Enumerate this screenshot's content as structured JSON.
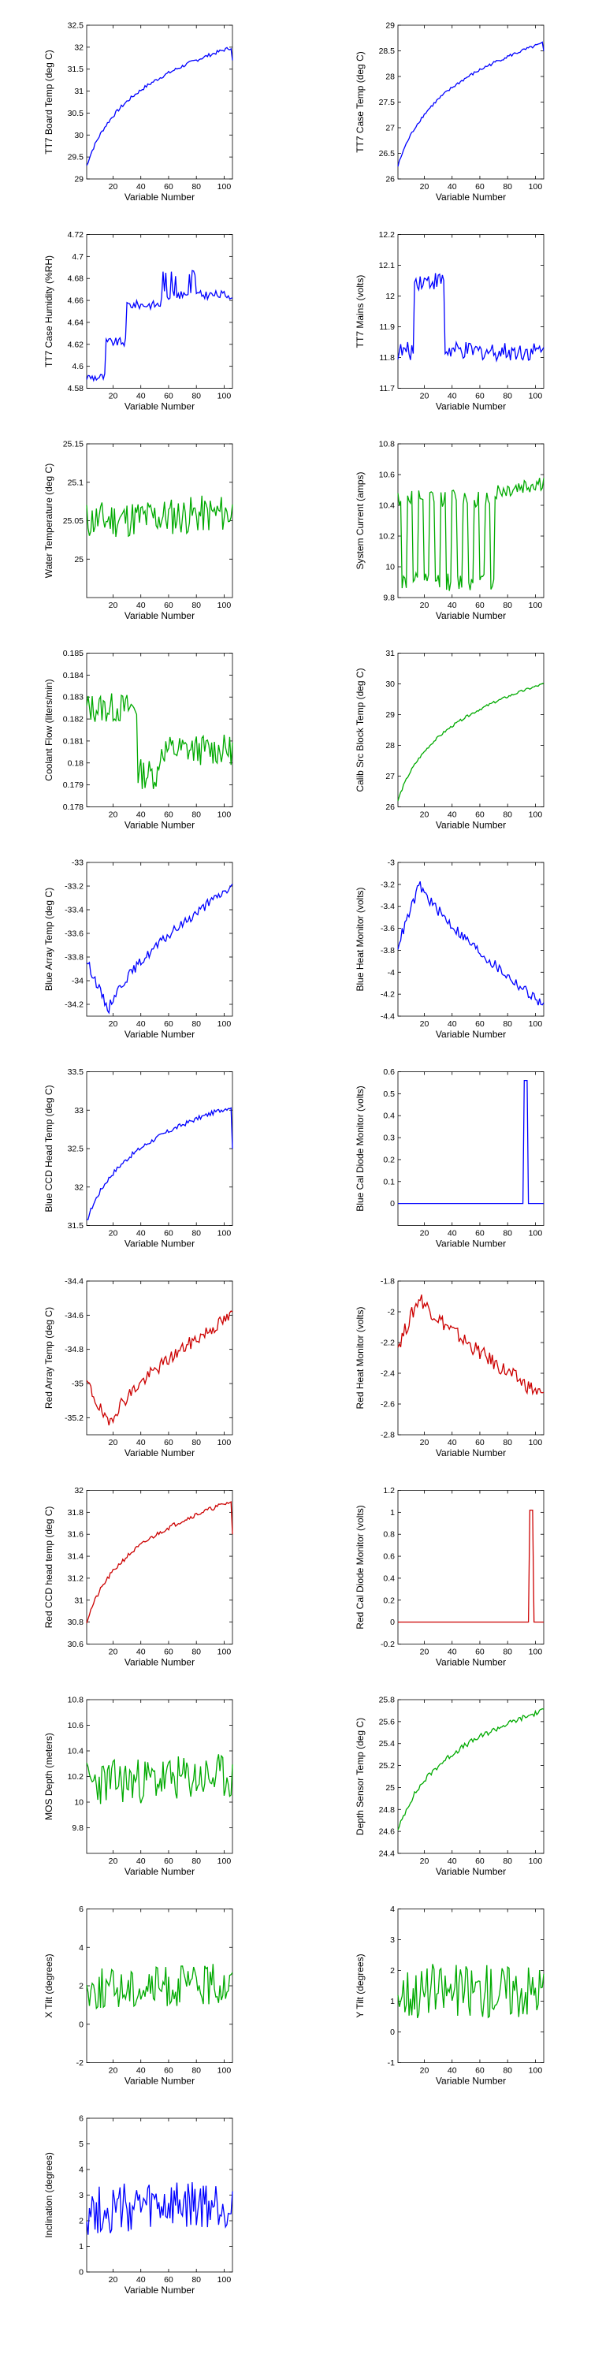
{
  "xlabel_common": "Variable Number",
  "colors": {
    "blue": "#0000FF",
    "green": "#00AA00",
    "red": "#CC0000"
  },
  "chart_data": [
    {
      "type": "line",
      "ylabel": "TT7 Board Temp (deg C)",
      "xlabel": "Variable Number",
      "xlim": [
        1,
        106
      ],
      "ylim": [
        29,
        32.5
      ],
      "xticks": [
        20,
        40,
        60,
        80,
        100
      ],
      "yticks": [
        "29",
        "29.5",
        "30",
        "30.5",
        "31",
        "31.5",
        "32",
        "32.5"
      ],
      "color": "blue",
      "shape": "log",
      "range": [
        29.3,
        32.0
      ],
      "noise": 0.04,
      "end_drop": 31.7
    },
    {
      "type": "line",
      "ylabel": "TT7 Case Temp (deg C)",
      "xlabel": "Variable Number",
      "xlim": [
        1,
        106
      ],
      "ylim": [
        26,
        29
      ],
      "xticks": [
        20,
        40,
        60,
        80,
        100
      ],
      "yticks": [
        "26",
        "26.5",
        "27",
        "27.5",
        "28",
        "28.5",
        "29"
      ],
      "color": "blue",
      "shape": "log",
      "range": [
        26.25,
        28.65
      ],
      "noise": 0.03,
      "end_drop": 28.5
    },
    {
      "type": "line",
      "ylabel": "TT7 Case Humidity (%RH)",
      "xlabel": "Variable Number",
      "xlim": [
        1,
        106
      ],
      "ylim": [
        4.58,
        4.72
      ],
      "xticks": [
        20,
        40,
        60,
        80,
        100
      ],
      "yticks": [
        "4.58",
        "4.6",
        "4.62",
        "4.64",
        "4.66",
        "4.68",
        "4.7",
        "4.72"
      ],
      "color": "blue",
      "shape": "humidity",
      "range": [
        4.59,
        4.665
      ],
      "noise": 0.004
    },
    {
      "type": "line",
      "ylabel": "TT7 Mains  (volts)",
      "xlabel": "Variable Number",
      "xlim": [
        1,
        106
      ],
      "ylim": [
        11.7,
        12.2
      ],
      "xticks": [
        20,
        40,
        60,
        80,
        100
      ],
      "yticks": [
        "11.7",
        "11.8",
        "11.9",
        "12",
        "12.1",
        "12.2"
      ],
      "color": "blue",
      "shape": "mains",
      "range": [
        11.78,
        12.12
      ],
      "noise": 0.03
    },
    {
      "type": "line",
      "ylabel": "Water Temperature (deg C)",
      "xlabel": "Variable Number",
      "xlim": [
        1,
        106
      ],
      "ylim": [
        24.95,
        25.15
      ],
      "xticks": [
        20,
        40,
        60,
        80,
        100
      ],
      "yticks": [
        "25",
        "25.05",
        "25.1",
        "25.15"
      ],
      "color": "green",
      "shape": "noisy",
      "range": [
        25.05,
        25.06
      ],
      "noise": 0.025
    },
    {
      "type": "line",
      "ylabel": "System Current (amps)",
      "xlabel": "Variable Number",
      "xlim": [
        1,
        106
      ],
      "ylim": [
        9.8,
        10.8
      ],
      "xticks": [
        20,
        40,
        60,
        80,
        100
      ],
      "yticks": [
        "9.8",
        "10",
        "10.2",
        "10.4",
        "10.6",
        "10.8"
      ],
      "color": "green",
      "shape": "current",
      "range": [
        9.85,
        10.6
      ],
      "noise": 0.06
    },
    {
      "type": "line",
      "ylabel": "Coolant Flow (liters/min)",
      "xlabel": "Variable Number",
      "xlim": [
        1,
        106
      ],
      "ylim": [
        0.178,
        0.185
      ],
      "xticks": [
        20,
        40,
        60,
        80,
        100
      ],
      "yticks": [
        "0.178",
        "0.179",
        "0.18",
        "0.181",
        "0.182",
        "0.183",
        "0.184",
        "0.185"
      ],
      "color": "green",
      "shape": "coolant",
      "range": [
        0.1815,
        0.1802
      ],
      "noise": 0.0007
    },
    {
      "type": "line",
      "ylabel": "Calib Src Block Temp (deg C)",
      "xlabel": "Variable Number",
      "xlim": [
        1,
        106
      ],
      "ylim": [
        26,
        31
      ],
      "xticks": [
        20,
        40,
        60,
        80,
        100
      ],
      "yticks": [
        "26",
        "27",
        "28",
        "29",
        "30",
        "31"
      ],
      "color": "green",
      "shape": "log",
      "range": [
        26.2,
        30.0
      ],
      "noise": 0.04
    },
    {
      "type": "line",
      "ylabel": "Blue Array Temp (deg C)",
      "xlabel": "Variable Number",
      "xlim": [
        1,
        106
      ],
      "ylim": [
        -34.3,
        -33
      ],
      "xticks": [
        20,
        40,
        60,
        80,
        100
      ],
      "yticks": [
        "-34.2",
        "-34",
        "-33.8",
        "-33.6",
        "-33.4",
        "-33.2",
        "-33"
      ],
      "color": "blue",
      "shape": "dip_rise",
      "range": [
        -34.25,
        -33.2
      ],
      "noise": 0.04
    },
    {
      "type": "line",
      "ylabel": "Blue Heat Monitor (volts)",
      "xlabel": "Variable Number",
      "xlim": [
        1,
        106
      ],
      "ylim": [
        -4.4,
        -3
      ],
      "xticks": [
        20,
        40,
        60,
        80,
        100
      ],
      "yticks": [
        "-4.4",
        "-4.2",
        "-4",
        "-3.8",
        "-3.6",
        "-3.4",
        "-3.2",
        "-3"
      ],
      "color": "blue",
      "shape": "peak_fall",
      "range": [
        -3.2,
        -4.3
      ],
      "noise": 0.05
    },
    {
      "type": "line",
      "ylabel": "Blue CCD Head Temp (deg C)",
      "xlabel": "Variable Number",
      "xlim": [
        1,
        106
      ],
      "ylim": [
        31.5,
        33.5
      ],
      "xticks": [
        20,
        40,
        60,
        80,
        100
      ],
      "yticks": [
        "31.5",
        "32",
        "32.5",
        "33",
        "33.5"
      ],
      "color": "blue",
      "shape": "log",
      "range": [
        31.55,
        33.05
      ],
      "noise": 0.03,
      "end_drop": 32.5
    },
    {
      "type": "line",
      "ylabel": "Blue Cal Diode Monitor (volts)",
      "xlabel": "Variable Number",
      "xlim": [
        1,
        106
      ],
      "ylim": [
        -0.1,
        0.6
      ],
      "xticks": [
        20,
        40,
        60,
        80,
        100
      ],
      "yticks": [
        "0",
        "0.1",
        "0.2",
        "0.3",
        "0.4",
        "0.5",
        "0.6"
      ],
      "color": "blue",
      "shape": "spike",
      "range": [
        0,
        0.56
      ],
      "spike_at": [
        92,
        93,
        94
      ],
      "noise": 0
    },
    {
      "type": "line",
      "ylabel": "Red Array Temp (deg C)",
      "xlabel": "Variable Number",
      "xlim": [
        1,
        106
      ],
      "ylim": [
        -35.3,
        -34.4
      ],
      "xticks": [
        20,
        40,
        60,
        80,
        100
      ],
      "yticks": [
        "-35.2",
        "-35",
        "-34.8",
        "-34.6",
        "-34.4"
      ],
      "color": "red",
      "shape": "dip_rise",
      "range": [
        -35.25,
        -34.6
      ],
      "noise": 0.04
    },
    {
      "type": "line",
      "ylabel": "Red Heat Monitor (volts)",
      "xlabel": "Variable Number",
      "xlim": [
        1,
        106
      ],
      "ylim": [
        -2.8,
        -1.8
      ],
      "xticks": [
        20,
        40,
        60,
        80,
        100
      ],
      "yticks": [
        "-2.8",
        "-2.6",
        "-2.4",
        "-2.2",
        "-2",
        "-1.8"
      ],
      "color": "red",
      "shape": "peak_fall",
      "range": [
        -1.9,
        -2.55
      ],
      "noise": 0.05
    },
    {
      "type": "line",
      "ylabel": "Red CCD head temp (deg C)",
      "xlabel": "Variable Number",
      "xlim": [
        1,
        106
      ],
      "ylim": [
        30.6,
        32
      ],
      "xticks": [
        20,
        40,
        60,
        80,
        100
      ],
      "yticks": [
        "30.6",
        "30.8",
        "31",
        "31.2",
        "31.4",
        "31.6",
        "31.8",
        "32"
      ],
      "color": "red",
      "shape": "log",
      "range": [
        30.8,
        31.9
      ],
      "noise": 0.02,
      "end_drop": 31.6
    },
    {
      "type": "line",
      "ylabel": "Red Cal Diode Monitor (volts)",
      "xlabel": "Variable Number",
      "xlim": [
        1,
        106
      ],
      "ylim": [
        -0.2,
        1.2
      ],
      "xticks": [
        20,
        40,
        60,
        80,
        100
      ],
      "yticks": [
        "-0.2",
        "0",
        "0.2",
        "0.4",
        "0.6",
        "0.8",
        "1",
        "1.2"
      ],
      "color": "red",
      "shape": "spike",
      "range": [
        0,
        1.02
      ],
      "spike_at": [
        96,
        97,
        98
      ],
      "noise": 0
    },
    {
      "type": "line",
      "ylabel": "MOS Depth  (meters)",
      "xlabel": "Variable Number",
      "xlim": [
        1,
        106
      ],
      "ylim": [
        9.6,
        10.8
      ],
      "xticks": [
        20,
        40,
        60,
        80,
        100
      ],
      "yticks": [
        "9.8",
        "10",
        "10.2",
        "10.4",
        "10.6",
        "10.8"
      ],
      "color": "green",
      "shape": "noisy",
      "range": [
        10.15,
        10.2
      ],
      "noise": 0.18
    },
    {
      "type": "line",
      "ylabel": "Depth Sensor Temp (deg C)",
      "xlabel": "Variable Number",
      "xlim": [
        1,
        106
      ],
      "ylim": [
        24.4,
        25.8
      ],
      "xticks": [
        20,
        40,
        60,
        80,
        100
      ],
      "yticks": [
        "24.4",
        "24.6",
        "24.8",
        "25",
        "25.2",
        "25.4",
        "25.6",
        "25.8"
      ],
      "color": "green",
      "shape": "log",
      "range": [
        24.6,
        25.7
      ],
      "noise": 0.025
    },
    {
      "type": "line",
      "ylabel": "X Tilt  (degrees)",
      "xlabel": "Variable Number",
      "xlim": [
        1,
        106
      ],
      "ylim": [
        -2,
        6
      ],
      "xticks": [
        20,
        40,
        60,
        80,
        100
      ],
      "yticks": [
        "-2",
        "0",
        "2",
        "4",
        "6"
      ],
      "color": "green",
      "shape": "noisy",
      "range": [
        1.8,
        2.1
      ],
      "noise": 1.1
    },
    {
      "type": "line",
      "ylabel": "Y Tilt  (degrees)",
      "xlabel": "Variable Number",
      "xlim": [
        1,
        106
      ],
      "ylim": [
        -1,
        4
      ],
      "xticks": [
        20,
        40,
        60,
        80,
        100
      ],
      "yticks": [
        "-1",
        "0",
        "1",
        "2",
        "3",
        "4"
      ],
      "color": "green",
      "shape": "noisy",
      "range": [
        1.3,
        1.4
      ],
      "noise": 0.9
    },
    {
      "type": "line",
      "ylabel": "Inclination  (degrees)",
      "xlabel": "Variable Number",
      "xlim": [
        1,
        106
      ],
      "ylim": [
        0,
        6
      ],
      "xticks": [
        20,
        40,
        60,
        80,
        100
      ],
      "yticks": [
        "0",
        "1",
        "2",
        "3",
        "4",
        "5",
        "6"
      ],
      "color": "blue",
      "shape": "noisy",
      "range": [
        2.4,
        2.6
      ],
      "noise": 1.0
    }
  ]
}
